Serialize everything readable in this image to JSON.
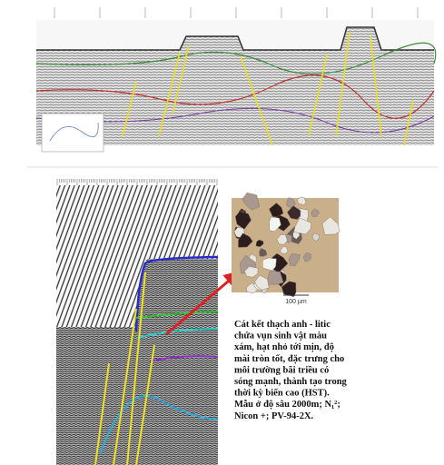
{
  "micrograph": {
    "scale_label": "100 µm"
  },
  "caption": {
    "lines": [
      "Cát kết thạch anh - litic",
      "chứa vụn sinh vật màu",
      "xám, hạt nhỏ tới mịn, độ",
      "mài tròn tốt, đặc trưng cho",
      "môi trường bãi triều có",
      "sóng mạnh, thành tạo trong",
      "thời kỳ biển cao (HST).",
      "Mẫu ở độ sâu 2000m; N₁²;",
      "Nicon +; PV-94-2X."
    ]
  }
}
